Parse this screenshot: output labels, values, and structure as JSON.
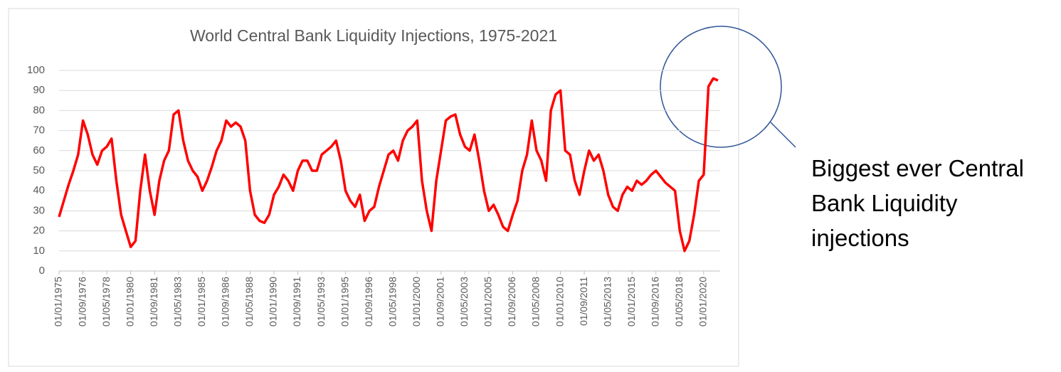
{
  "chart_data": {
    "type": "line",
    "title": "World Central Bank Liquidity Injections, 1975-2021",
    "categories": [
      "01/01/1975",
      null,
      null,
      null,
      null,
      "01/09/1976",
      null,
      null,
      null,
      null,
      "01/05/1978",
      null,
      null,
      null,
      null,
      "01/01/1980",
      null,
      null,
      null,
      null,
      "01/09/1981",
      null,
      null,
      null,
      null,
      "01/05/1983",
      null,
      null,
      null,
      null,
      "01/01/1985",
      null,
      null,
      null,
      null,
      "01/09/1986",
      null,
      null,
      null,
      null,
      "01/05/1988",
      null,
      null,
      null,
      null,
      "01/01/1990",
      null,
      null,
      null,
      null,
      "01/09/1991",
      null,
      null,
      null,
      null,
      "01/05/1993",
      null,
      null,
      null,
      null,
      "01/01/1995",
      null,
      null,
      null,
      null,
      "01/09/1996",
      null,
      null,
      null,
      null,
      "01/05/1998",
      null,
      null,
      null,
      null,
      "01/01/2000",
      null,
      null,
      null,
      null,
      "01/09/2001",
      null,
      null,
      null,
      null,
      "01/05/2003",
      null,
      null,
      null,
      null,
      "01/01/2005",
      null,
      null,
      null,
      null,
      "01/09/2006",
      null,
      null,
      null,
      null,
      "01/05/2008",
      null,
      null,
      null,
      null,
      "01/01/2010",
      null,
      null,
      null,
      null,
      "01/09/2011",
      null,
      null,
      null,
      null,
      "01/05/2013",
      null,
      null,
      null,
      null,
      "01/01/2015",
      null,
      null,
      null,
      null,
      "01/09/2016",
      null,
      null,
      null,
      null,
      "01/05/2018",
      null,
      null,
      null,
      null,
      "01/01/2020",
      null,
      null,
      null
    ],
    "values": [
      27,
      35,
      43,
      50,
      58,
      75,
      68,
      58,
      53,
      60,
      62,
      66,
      45,
      28,
      20,
      12,
      15,
      40,
      58,
      40,
      28,
      45,
      55,
      60,
      78,
      80,
      65,
      55,
      50,
      47,
      40,
      45,
      52,
      60,
      65,
      75,
      72,
      74,
      72,
      65,
      40,
      28,
      25,
      24,
      28,
      38,
      42,
      48,
      45,
      40,
      50,
      55,
      55,
      50,
      50,
      58,
      60,
      62,
      65,
      55,
      40,
      35,
      32,
      38,
      25,
      30,
      32,
      42,
      50,
      58,
      60,
      55,
      65,
      70,
      72,
      75,
      45,
      30,
      20,
      45,
      60,
      75,
      77,
      78,
      68,
      62,
      60,
      68,
      55,
      40,
      30,
      33,
      28,
      22,
      20,
      28,
      35,
      50,
      58,
      75,
      60,
      55,
      45,
      80,
      88,
      90,
      60,
      58,
      45,
      38,
      50,
      60,
      55,
      58,
      50,
      38,
      32,
      30,
      38,
      42,
      40,
      45,
      43,
      45,
      48,
      50,
      47,
      44,
      42,
      40,
      20,
      10,
      15,
      28,
      45,
      48,
      92,
      96,
      95
    ],
    "color": "#ff0000",
    "ylim": [
      0,
      100
    ],
    "yticks": [
      0,
      10,
      20,
      30,
      40,
      50,
      60,
      70,
      80,
      90,
      100
    ],
    "grid": true,
    "annotation": "Biggest ever Central Bank Liquidity injections"
  }
}
